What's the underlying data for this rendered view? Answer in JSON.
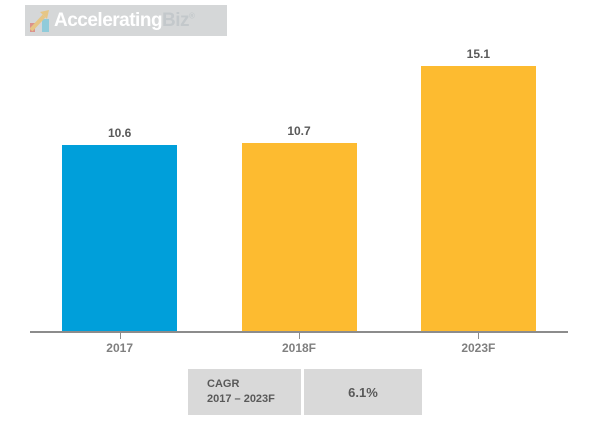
{
  "logo": {
    "brand_primary": "Accelerating",
    "brand_secondary": "Biz",
    "registered_mark": "®",
    "icon": "growth-chart-icon",
    "banner_bg": "#d5d7d8"
  },
  "chart_data": {
    "type": "bar",
    "categories": [
      "2017",
      "2018F",
      "2023F"
    ],
    "values": [
      10.6,
      10.7,
      15.1
    ],
    "value_labels": [
      "10.6",
      "10.7",
      "15.1"
    ],
    "bar_colors": [
      "#009fda",
      "#fdbb30",
      "#fdbb30"
    ],
    "title": "",
    "xlabel": "",
    "ylabel": "",
    "ylim": [
      0,
      16
    ],
    "grid": false,
    "legend": false,
    "y_axis_visible": false,
    "axis_color": "#8c8c8c",
    "value_label_color": "#595959",
    "tick_label_color": "#7f7f7f"
  },
  "cagr": {
    "label_line1": "CAGR",
    "label_line2": "2017 – 2023F",
    "value": "6.1%",
    "box_bg": "#d9d9d9",
    "text_color": "#595959"
  }
}
